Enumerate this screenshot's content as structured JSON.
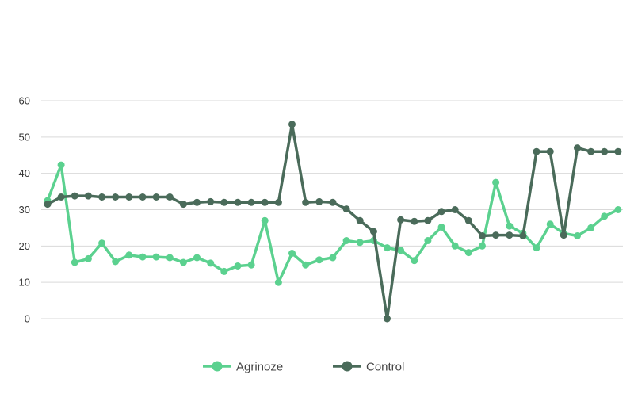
{
  "chart_data": {
    "type": "line",
    "title": "",
    "xlabel": "",
    "ylabel": "",
    "ylim": [
      0,
      60
    ],
    "yticks": [
      0,
      10,
      20,
      30,
      40,
      50,
      60
    ],
    "grid": true,
    "legend_position": "bottom",
    "x": [
      1,
      2,
      3,
      4,
      5,
      6,
      7,
      8,
      9,
      10,
      11,
      12,
      13,
      14,
      15,
      16,
      17,
      18,
      19,
      20,
      21,
      22,
      23,
      24,
      25,
      26,
      27,
      28,
      29,
      30,
      31,
      32,
      33,
      34,
      35,
      36,
      37,
      38,
      39,
      40,
      41,
      42,
      43,
      44
    ],
    "series": [
      {
        "name": "Agrinoze",
        "color": "#5bd18f",
        "values": [
          32.5,
          42.3,
          15.5,
          16.5,
          20.8,
          15.7,
          17.5,
          17,
          17,
          16.8,
          15.5,
          16.8,
          15.3,
          13,
          14.5,
          14.8,
          27,
          10,
          18,
          14.8,
          16.2,
          16.8,
          21.5,
          21,
          21.5,
          19.5,
          18.8,
          16,
          21.5,
          25.2,
          20,
          18.2,
          20,
          37.5,
          25.5,
          23.5,
          19.5,
          26,
          23.5,
          22.8,
          25,
          28.2,
          30,
          null
        ]
      },
      {
        "name": "Control",
        "color": "#4a6b5a",
        "values": [
          31.5,
          33.5,
          33.8,
          33.8,
          33.5,
          33.5,
          33.5,
          33.5,
          33.5,
          33.5,
          31.5,
          32,
          32.2,
          32,
          32,
          32,
          32,
          32,
          53.5,
          32,
          32.2,
          32,
          30.2,
          27,
          24,
          0,
          27.2,
          26.8,
          27,
          29.5,
          30,
          27,
          22.8,
          23,
          23,
          22.8,
          46,
          46,
          23,
          47,
          46,
          46,
          46,
          null
        ]
      }
    ]
  }
}
